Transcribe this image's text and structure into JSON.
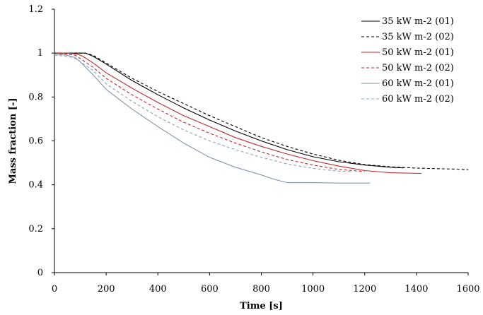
{
  "chart_data": {
    "type": "line",
    "title": "",
    "xlabel": "Time [s]",
    "ylabel": "Mass fraction [-]",
    "xlim": [
      0,
      1600
    ],
    "ylim": [
      0,
      1.2
    ],
    "x_ticks": [
      0,
      200,
      400,
      600,
      800,
      1000,
      1200,
      1400,
      1600
    ],
    "y_ticks": [
      0,
      0.2,
      0.4,
      0.6,
      0.8,
      1,
      1.2
    ],
    "x_tick_labels": [
      "0",
      "200",
      "400",
      "600",
      "800",
      "1000",
      "1200",
      "1400",
      "1600"
    ],
    "y_tick_labels": [
      "0",
      "0.2",
      "0.4",
      "0.6",
      "0.8",
      "1",
      "1.2"
    ],
    "grid": false,
    "legend_position": "top-right",
    "series": [
      {
        "name": "35 kW m-2 (01)",
        "color": "#000000",
        "dash": "solid",
        "x": [
          0,
          50,
          100,
          120,
          150,
          200,
          300,
          400,
          500,
          600,
          700,
          800,
          900,
          1000,
          1100,
          1200,
          1300,
          1350
        ],
        "y": [
          1.0,
          1.0,
          1.0,
          1.0,
          0.985,
          0.95,
          0.875,
          0.81,
          0.75,
          0.695,
          0.645,
          0.6,
          0.56,
          0.528,
          0.505,
          0.49,
          0.48,
          0.477
        ]
      },
      {
        "name": "35 kW m-2 (02)",
        "color": "#000000",
        "dash": "dashed",
        "x": [
          0,
          50,
          100,
          120,
          150,
          200,
          300,
          400,
          500,
          600,
          700,
          800,
          900,
          1000,
          1100,
          1200,
          1300,
          1400,
          1500,
          1600
        ],
        "y": [
          1.0,
          1.0,
          1.0,
          1.0,
          0.99,
          0.955,
          0.885,
          0.825,
          0.77,
          0.715,
          0.665,
          0.615,
          0.575,
          0.54,
          0.512,
          0.492,
          0.482,
          0.476,
          0.473,
          0.47
        ]
      },
      {
        "name": "50 kW m-2 (01)",
        "color": "#c0272d",
        "dash": "solid",
        "x": [
          0,
          50,
          90,
          110,
          150,
          200,
          300,
          400,
          500,
          600,
          700,
          800,
          900,
          1000,
          1100,
          1200,
          1300,
          1420
        ],
        "y": [
          1.0,
          1.0,
          0.995,
          0.985,
          0.955,
          0.91,
          0.84,
          0.775,
          0.715,
          0.665,
          0.615,
          0.575,
          0.54,
          0.51,
          0.485,
          0.465,
          0.455,
          0.452
        ]
      },
      {
        "name": "50 kW m-2 (02)",
        "color": "#c0272d",
        "dash": "dashed",
        "x": [
          0,
          50,
          80,
          100,
          150,
          200,
          300,
          400,
          500,
          600,
          700,
          800,
          900,
          1000,
          1100,
          1200
        ],
        "y": [
          1.0,
          0.995,
          0.99,
          0.975,
          0.935,
          0.885,
          0.81,
          0.745,
          0.685,
          0.635,
          0.59,
          0.55,
          0.515,
          0.49,
          0.47,
          0.46
        ]
      },
      {
        "name": "60 kW m-2 (01)",
        "color": "#7f95ad",
        "dash": "solid",
        "x": [
          0,
          50,
          80,
          100,
          150,
          200,
          300,
          400,
          500,
          600,
          700,
          800,
          850,
          900,
          1000,
          1100,
          1220
        ],
        "y": [
          0.995,
          0.99,
          0.98,
          0.96,
          0.9,
          0.835,
          0.745,
          0.665,
          0.59,
          0.525,
          0.48,
          0.445,
          0.425,
          0.41,
          0.41,
          0.408,
          0.408
        ]
      },
      {
        "name": "60 kW m-2 (02)",
        "color": "#8fa3b8",
        "dash": "dashed",
        "x": [
          0,
          50,
          80,
          100,
          150,
          200,
          300,
          400,
          500,
          600,
          700,
          800,
          900,
          1000,
          1100,
          1150
        ],
        "y": [
          0.99,
          0.985,
          0.975,
          0.96,
          0.92,
          0.86,
          0.78,
          0.71,
          0.65,
          0.6,
          0.56,
          0.525,
          0.495,
          0.475,
          0.462,
          0.46
        ]
      }
    ]
  }
}
